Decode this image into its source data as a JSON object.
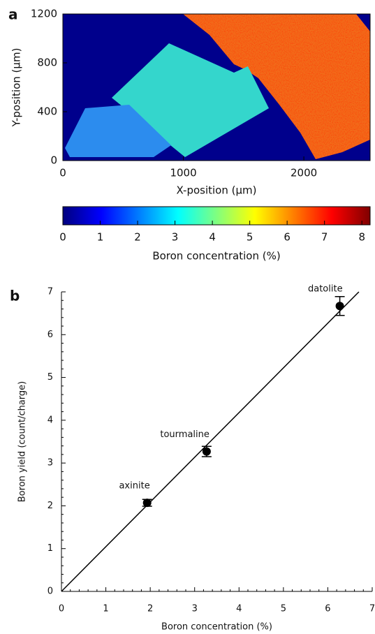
{
  "chart_data": [
    {
      "type": "heatmap",
      "panel_label": "a",
      "xlabel": "X-position (μm)",
      "ylabel": "Y-position (μm)",
      "xlim": [
        0,
        2550
      ],
      "ylim": [
        0,
        1200
      ],
      "xticks": [
        0,
        1000,
        2000
      ],
      "yticks": [
        0,
        400,
        800,
        1200
      ],
      "colorbar": {
        "label": "Boron concentration (%)",
        "lim": [
          0,
          8.22
        ],
        "ticks": [
          0,
          1,
          2,
          3,
          4,
          5,
          6,
          7,
          8
        ]
      }
    },
    {
      "type": "scatter",
      "panel_label": "b",
      "xlabel": "Boron concentration (%)",
      "ylabel": "Boron yield (count/charge)",
      "xlim": [
        0,
        7
      ],
      "ylim": [
        0,
        7
      ],
      "xticks": [
        0,
        1,
        2,
        3,
        4,
        5,
        6,
        7
      ],
      "yticks": [
        0,
        1,
        2,
        3,
        4,
        5,
        6,
        7
      ],
      "color": "#000000",
      "series": [
        {
          "x": [
            1.93,
            3.27,
            6.27
          ],
          "values": [
            2.07,
            3.27,
            6.67
          ],
          "errors": [
            0.08,
            0.12,
            0.22
          ],
          "labels": [
            "axinite",
            "tourmaline",
            "datolite"
          ]
        }
      ],
      "fit_line": {
        "x": [
          0,
          6.7
        ],
        "values": [
          0,
          7
        ]
      }
    }
  ]
}
